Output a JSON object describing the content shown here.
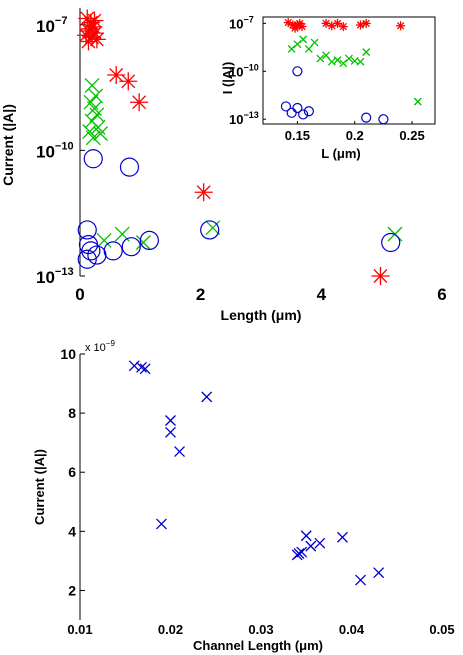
{
  "chart_data": [
    {
      "id": "top",
      "type": "scatter",
      "xlabel": "Length (μm)",
      "ylabel": "Current (|A|)",
      "xlim": [
        0,
        6
      ],
      "ylim_log10": [
        -13,
        -6.6
      ],
      "y_scale": "log",
      "x_ticks": [
        0,
        2,
        4,
        6
      ],
      "y_ticks": [
        {
          "exp": -7,
          "label_base": "10",
          "label_exp": "−7"
        },
        {
          "exp": -10,
          "label_base": "10",
          "label_exp": "−10"
        },
        {
          "exp": -13,
          "label_base": "10",
          "label_exp": "−13"
        }
      ],
      "series": [
        {
          "marker": "star",
          "color": "#ff0000",
          "points": [
            [
              0.12,
              -6.85
            ],
            [
              0.18,
              -6.95
            ],
            [
              0.22,
              -7.05
            ],
            [
              0.15,
              -7.15
            ],
            [
              0.25,
              -7.2
            ],
            [
              0.1,
              -7.25
            ],
            [
              0.2,
              -7.3
            ],
            [
              0.28,
              -7.35
            ],
            [
              0.14,
              -7.4
            ],
            [
              0.24,
              -6.9
            ],
            [
              0.16,
              -7.1
            ],
            [
              0.6,
              -8.2
            ],
            [
              0.8,
              -8.35
            ],
            [
              0.98,
              -8.85
            ],
            [
              2.05,
              -11.0
            ],
            [
              4.98,
              -13.0
            ]
          ]
        },
        {
          "marker": "x",
          "color": "#00c000",
          "points": [
            [
              0.2,
              -8.45
            ],
            [
              0.26,
              -8.7
            ],
            [
              0.18,
              -8.85
            ],
            [
              0.24,
              -9.0
            ],
            [
              0.28,
              -9.15
            ],
            [
              0.2,
              -9.3
            ],
            [
              0.3,
              -9.45
            ],
            [
              0.16,
              -9.55
            ],
            [
              0.34,
              -9.6
            ],
            [
              0.22,
              -9.7
            ],
            [
              0.7,
              -12.0
            ],
            [
              0.4,
              -12.15
            ],
            [
              1.05,
              -12.2
            ],
            [
              2.2,
              -11.85
            ],
            [
              5.22,
              -12.0
            ]
          ]
        },
        {
          "marker": "circle",
          "color": "#0000cc",
          "points": [
            [
              0.22,
              -10.2
            ],
            [
              0.82,
              -10.4
            ],
            [
              0.12,
              -11.9
            ],
            [
              0.14,
              -12.25
            ],
            [
              0.18,
              -12.4
            ],
            [
              0.28,
              -12.5
            ],
            [
              0.12,
              -12.6
            ],
            [
              0.55,
              -12.4
            ],
            [
              0.85,
              -12.3
            ],
            [
              1.15,
              -12.15
            ],
            [
              2.15,
              -11.9
            ],
            [
              5.15,
              -12.2
            ]
          ]
        }
      ]
    },
    {
      "id": "inset",
      "type": "scatter",
      "xlabel": "L (μm)",
      "ylabel": "I (|A|)",
      "xlim": [
        0.12,
        0.27
      ],
      "ylim_log10": [
        -13.3,
        -6.6
      ],
      "y_scale": "log",
      "x_ticks": [
        {
          "v": 0.15,
          "label": "0.15"
        },
        {
          "v": 0.2,
          "label": "0.2"
        },
        {
          "v": 0.25,
          "label": "0.25"
        }
      ],
      "y_ticks": [
        {
          "exp": -7,
          "label_base": "10",
          "label_exp": "−7"
        },
        {
          "exp": -10,
          "label_base": "10",
          "label_exp": "−10"
        },
        {
          "exp": -13,
          "label_base": "10",
          "label_exp": "−13"
        }
      ],
      "series": [
        {
          "marker": "star",
          "color": "#ff0000",
          "points": [
            [
              0.142,
              -6.95
            ],
            [
              0.146,
              -7.1
            ],
            [
              0.148,
              -7.3
            ],
            [
              0.15,
              -7.1
            ],
            [
              0.152,
              -7.0
            ],
            [
              0.154,
              -7.2
            ],
            [
              0.175,
              -7.0
            ],
            [
              0.18,
              -7.15
            ],
            [
              0.185,
              -7.0
            ],
            [
              0.19,
              -7.2
            ],
            [
              0.205,
              -7.1
            ],
            [
              0.21,
              -7.0
            ],
            [
              0.24,
              -7.15
            ]
          ]
        },
        {
          "marker": "x",
          "color": "#00c000",
          "points": [
            [
              0.145,
              -8.6
            ],
            [
              0.15,
              -8.3
            ],
            [
              0.155,
              -8.0
            ],
            [
              0.16,
              -8.6
            ],
            [
              0.165,
              -8.2
            ],
            [
              0.17,
              -9.2
            ],
            [
              0.175,
              -9.0
            ],
            [
              0.18,
              -9.4
            ],
            [
              0.185,
              -9.3
            ],
            [
              0.19,
              -9.5
            ],
            [
              0.195,
              -9.2
            ],
            [
              0.2,
              -9.35
            ],
            [
              0.205,
              -9.4
            ],
            [
              0.21,
              -8.8
            ],
            [
              0.255,
              -11.9
            ]
          ]
        },
        {
          "marker": "circle",
          "color": "#0000cc",
          "points": [
            [
              0.15,
              -10.0
            ],
            [
              0.14,
              -12.2
            ],
            [
              0.145,
              -12.6
            ],
            [
              0.15,
              -12.3
            ],
            [
              0.155,
              -12.7
            ],
            [
              0.16,
              -12.5
            ],
            [
              0.21,
              -12.9
            ],
            [
              0.225,
              -13.0
            ]
          ]
        }
      ]
    },
    {
      "id": "bottom",
      "type": "scatter",
      "xlabel": "Channel Length (μm)",
      "ylabel": "Current (|A|)",
      "xlim": [
        0.01,
        0.05
      ],
      "ylim": [
        1,
        10
      ],
      "y_multiplier": {
        "base": "x 10",
        "exp": "−9"
      },
      "x_ticks": [
        {
          "v": 0.01,
          "label": "0.01"
        },
        {
          "v": 0.02,
          "label": "0.02"
        },
        {
          "v": 0.03,
          "label": "0.03"
        },
        {
          "v": 0.04,
          "label": "0.04"
        },
        {
          "v": 0.05,
          "label": "0.05"
        }
      ],
      "y_ticks": [
        {
          "v": 2,
          "label": "2"
        },
        {
          "v": 4,
          "label": "4"
        },
        {
          "v": 6,
          "label": "6"
        },
        {
          "v": 8,
          "label": "8"
        },
        {
          "v": 10,
          "label": "10"
        }
      ],
      "series": [
        {
          "marker": "x",
          "color": "#0000cc",
          "points": [
            [
              0.016,
              9.6
            ],
            [
              0.0168,
              9.55
            ],
            [
              0.0172,
              9.5
            ],
            [
              0.019,
              4.25
            ],
            [
              0.02,
              7.75
            ],
            [
              0.02,
              7.35
            ],
            [
              0.021,
              6.7
            ],
            [
              0.024,
              8.55
            ],
            [
              0.034,
              3.2
            ],
            [
              0.0342,
              3.25
            ],
            [
              0.0345,
              3.3
            ],
            [
              0.035,
              3.85
            ],
            [
              0.0355,
              3.5
            ],
            [
              0.0365,
              3.6
            ],
            [
              0.039,
              3.8
            ],
            [
              0.041,
              2.35
            ],
            [
              0.043,
              2.6
            ]
          ]
        }
      ]
    }
  ]
}
